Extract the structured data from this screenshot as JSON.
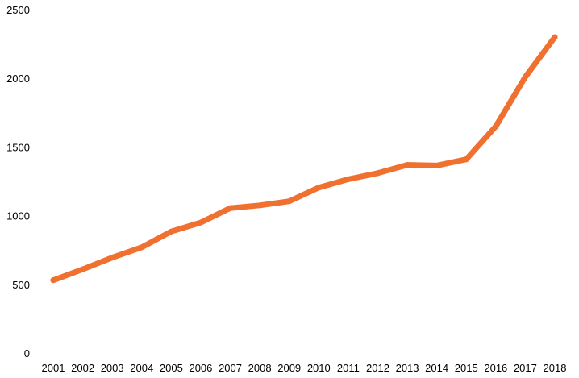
{
  "chart_data": {
    "type": "line",
    "title": "",
    "xlabel": "",
    "ylabel": "",
    "categories": [
      "2001",
      "2002",
      "2003",
      "2004",
      "2005",
      "2006",
      "2007",
      "2008",
      "2009",
      "2010",
      "2011",
      "2012",
      "2013",
      "2014",
      "2015",
      "2016",
      "2017",
      "2018"
    ],
    "series": [
      {
        "values": [
          530,
          610,
          695,
          770,
          885,
          950,
          1055,
          1075,
          1105,
          1205,
          1265,
          1310,
          1370,
          1365,
          1410,
          1650,
          2010,
          2300
        ],
        "color": "#f07030"
      }
    ],
    "ylim": [
      0,
      2500
    ],
    "yticks": [
      "0",
      "500",
      "1000",
      "1500",
      "2000",
      "2500"
    ],
    "grid": false,
    "legend": "none"
  }
}
